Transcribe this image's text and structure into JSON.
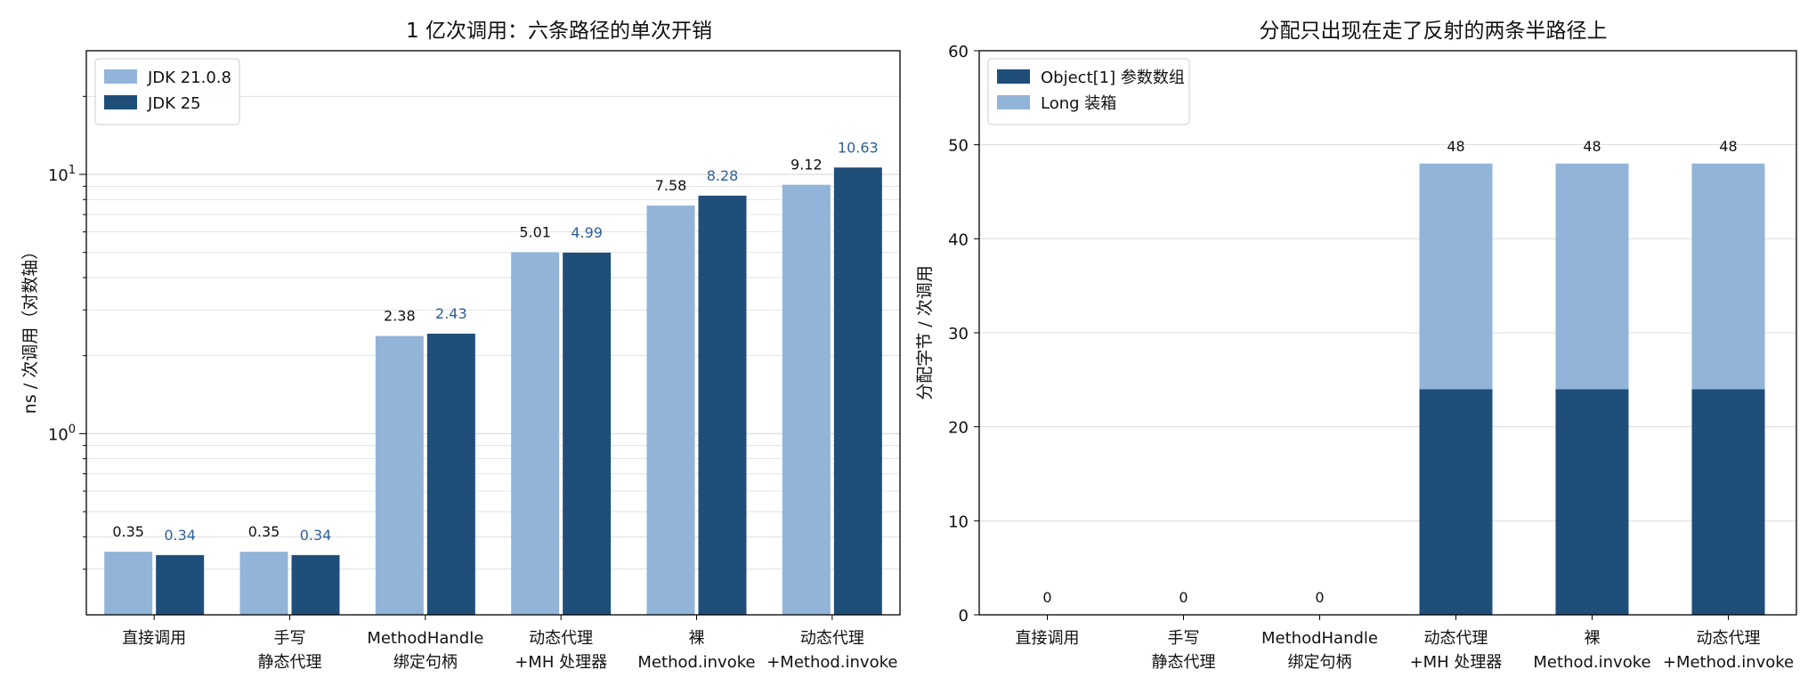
{
  "colors": {
    "light": "#92b4d9",
    "dark": "#1f4e79",
    "dark_label": "#2e5f96",
    "grid": "#dcdcdc",
    "axis": "#000000"
  },
  "chart_data": [
    {
      "type": "bar",
      "title": "1 亿次调用：六条路径的单次开销",
      "xlabel": "",
      "ylabel": "ns / 次调用（对数轴）",
      "yscale": "log",
      "ylim": [
        0.2,
        30
      ],
      "yticks": [
        {
          "value": 1,
          "base": "10",
          "exp": "0"
        },
        {
          "value": 10,
          "base": "10",
          "exp": "1"
        }
      ],
      "grid": true,
      "legend": "top-left",
      "categories": [
        [
          "直接调用"
        ],
        [
          "手写",
          "静态代理"
        ],
        [
          "MethodHandle",
          "绑定句柄"
        ],
        [
          "动态代理",
          "+MH 处理器"
        ],
        [
          "裸",
          "Method.invoke"
        ],
        [
          "动态代理",
          "+Method.invoke"
        ]
      ],
      "series": [
        {
          "name": "JDK 21.0.8",
          "color": "light",
          "values": [
            0.35,
            0.35,
            2.38,
            5.01,
            7.58,
            9.12
          ],
          "labels": [
            "0.35",
            "0.35",
            "2.38",
            "5.01",
            "7.58",
            "9.12"
          ]
        },
        {
          "name": "JDK 25",
          "color": "dark",
          "values": [
            0.34,
            0.34,
            2.43,
            4.99,
            8.28,
            10.63
          ],
          "labels": [
            "0.34",
            "0.34",
            "2.43",
            "4.99",
            "8.28",
            "10.63"
          ]
        }
      ]
    },
    {
      "type": "bar",
      "stacked": true,
      "title": "分配只出现在走了反射的两条半路径上",
      "xlabel": "",
      "ylabel": "分配字节 / 次调用",
      "ylim": [
        0,
        60
      ],
      "yticks": [
        0,
        10,
        20,
        30,
        40,
        50,
        60
      ],
      "grid": true,
      "legend": "top-left",
      "categories": [
        [
          "直接调用"
        ],
        [
          "手写",
          "静态代理"
        ],
        [
          "MethodHandle",
          "绑定句柄"
        ],
        [
          "动态代理",
          "+MH 处理器"
        ],
        [
          "裸",
          "Method.invoke"
        ],
        [
          "动态代理",
          "+Method.invoke"
        ]
      ],
      "series": [
        {
          "name": "Object[1] 参数数组",
          "color": "dark",
          "values": [
            0,
            0,
            0,
            24,
            24,
            24
          ]
        },
        {
          "name": "Long 装箱",
          "color": "light",
          "values": [
            0,
            0,
            0,
            24,
            24,
            24
          ]
        }
      ],
      "totals": [
        "0",
        "0",
        "0",
        "48",
        "48",
        "48"
      ]
    }
  ]
}
